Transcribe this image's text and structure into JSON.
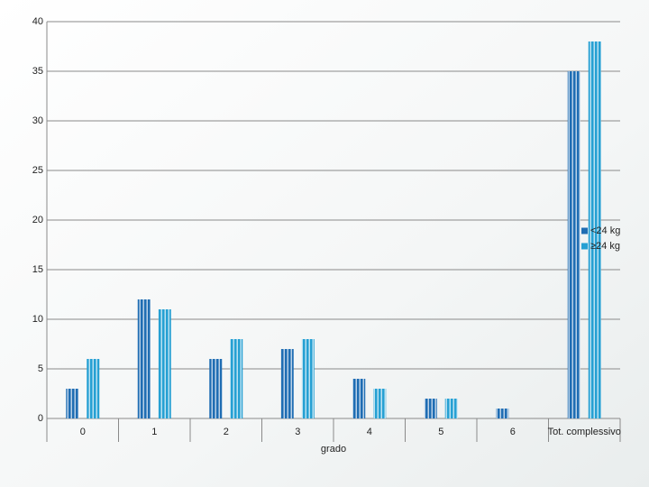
{
  "chart_data": {
    "type": "bar",
    "x_label": "grado",
    "categories": [
      "0",
      "1",
      "2",
      "3",
      "4",
      "5",
      "6",
      "Tot. complessivo"
    ],
    "series": [
      {
        "name": "<24 kg",
        "color": "#1f6db3",
        "values": [
          3,
          12,
          6,
          7,
          4,
          2,
          1,
          35
        ]
      },
      {
        "name": "≥24 kg",
        "color": "#26a0d3",
        "values": [
          6,
          11,
          8,
          8,
          3,
          2,
          null,
          38
        ]
      }
    ],
    "ylim": [
      0,
      40
    ],
    "yticks": [
      0,
      5,
      10,
      15,
      20,
      25,
      30,
      35,
      40
    ],
    "grid": true,
    "legend": "right"
  }
}
